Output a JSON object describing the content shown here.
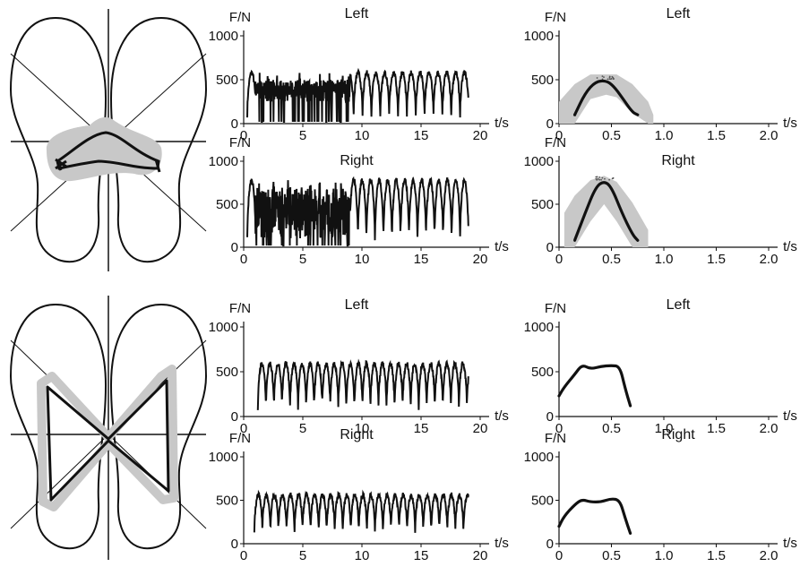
{
  "figure": {
    "panel_titles": [
      "Left",
      "Right"
    ],
    "force_unit": "F/N",
    "time_unit": "t/s",
    "colors": {
      "ink": "#111111",
      "band": "#c8c8c8",
      "dots": "#555555"
    }
  },
  "footprints": [
    {
      "name": "top",
      "trajectory": "small-loop-with-wide-gray-band"
    },
    {
      "name": "bottom",
      "trajectory": "butterfly-with-gray-band"
    }
  ],
  "chart_data": [
    {
      "type": "line",
      "name": "top-left-time-series",
      "title": "Left",
      "xlabel": "t/s",
      "ylabel": "F/N",
      "xlim": [
        0,
        20
      ],
      "ylim": [
        0,
        1000
      ],
      "xticks": [
        0,
        5,
        10,
        15,
        20
      ],
      "yticks": [
        0,
        500,
        1000
      ],
      "cycle_period": 0.75,
      "amplitude_peak": 580,
      "amplitude_min": 100,
      "irregular_segment": [
        1,
        9
      ],
      "irregular_range": [
        250,
        500
      ],
      "t_range": [
        0.3,
        19
      ]
    },
    {
      "type": "line",
      "name": "top-right-time-series",
      "title": "Right",
      "xlabel": "t/s",
      "ylabel": "F/N",
      "xlim": [
        0,
        20
      ],
      "ylim": [
        0,
        1000
      ],
      "xticks": [
        0,
        5,
        10,
        15,
        20
      ],
      "yticks": [
        0,
        500,
        1000
      ],
      "cycle_period": 0.72,
      "amplitude_peak": 780,
      "amplitude_min": 100,
      "irregular_segment": [
        1,
        9
      ],
      "irregular_range": [
        100,
        700
      ],
      "t_range": [
        0.3,
        19
      ]
    },
    {
      "type": "area",
      "name": "top-left-cycle",
      "title": "Left",
      "xlabel": "t/s",
      "ylabel": "F/N",
      "xlim": [
        0,
        2.0
      ],
      "ylim": [
        0,
        1000
      ],
      "xticks": [
        "0",
        "0.5",
        "1.0",
        "1.5",
        "2.0"
      ],
      "yticks": [
        0,
        500,
        1000
      ],
      "mean": {
        "x": [
          0.15,
          0.25,
          0.35,
          0.45,
          0.52,
          0.6,
          0.7,
          0.75
        ],
        "y": [
          100,
          350,
          480,
          490,
          430,
          300,
          130,
          100
        ]
      },
      "band": {
        "x": [
          0.0,
          0.15,
          0.3,
          0.45,
          0.55,
          0.7,
          0.85,
          0.9
        ],
        "upper": [
          250,
          450,
          560,
          560,
          560,
          450,
          250,
          100
        ],
        "lower": [
          0,
          0,
          280,
          330,
          300,
          120,
          0,
          0
        ]
      }
    },
    {
      "type": "area",
      "name": "top-right-cycle",
      "title": "Right",
      "xlabel": "t/s",
      "ylabel": "F/N",
      "xlim": [
        0,
        2.0
      ],
      "ylim": [
        0,
        1000
      ],
      "xticks": [
        "0",
        "0.5",
        "1.0",
        "1.5",
        "2.0"
      ],
      "yticks": [
        0,
        500,
        1000
      ],
      "mean": {
        "x": [
          0.15,
          0.25,
          0.35,
          0.43,
          0.5,
          0.6,
          0.7,
          0.75
        ],
        "y": [
          80,
          400,
          700,
          770,
          700,
          400,
          150,
          80
        ]
      },
      "band": {
        "x": [
          0.05,
          0.15,
          0.3,
          0.43,
          0.55,
          0.7,
          0.85
        ],
        "upper": [
          400,
          600,
          780,
          830,
          760,
          520,
          200
        ],
        "lower": [
          0,
          0,
          300,
          500,
          300,
          0,
          0
        ]
      }
    },
    {
      "type": "line",
      "name": "bottom-left-time-series",
      "title": "Left",
      "xlabel": "t/s",
      "ylabel": "F/N",
      "xlim": [
        0,
        20
      ],
      "ylim": [
        0,
        1000
      ],
      "xticks": [
        0,
        5,
        10,
        15,
        20
      ],
      "yticks": [
        0,
        500,
        1000
      ],
      "cycle_period": 0.68,
      "amplitude_peak": 590,
      "amplitude_min": 100,
      "t_range": [
        1.2,
        19
      ]
    },
    {
      "type": "line",
      "name": "bottom-right-time-series",
      "title": "Right",
      "xlabel": "t/s",
      "ylabel": "F/N",
      "xlim": [
        0,
        20
      ],
      "ylim": [
        0,
        1000
      ],
      "xticks": [
        0,
        5,
        10,
        15,
        20
      ],
      "yticks": [
        0,
        500,
        1000
      ],
      "cycle_period": 0.68,
      "amplitude_peak": 560,
      "amplitude_min": 150,
      "t_range": [
        0.9,
        19
      ]
    },
    {
      "type": "line",
      "name": "bottom-left-cycle",
      "title": "Left",
      "xlabel": "t/s",
      "ylabel": "F/N",
      "xlim": [
        0,
        2.0
      ],
      "ylim": [
        0,
        1000
      ],
      "xticks": [
        "0",
        "0.5",
        "1.0",
        "1.5",
        "2.0"
      ],
      "yticks": [
        0,
        500,
        1000
      ],
      "mean": {
        "x": [
          0.0,
          0.05,
          0.15,
          0.22,
          0.3,
          0.4,
          0.5,
          0.58,
          0.63,
          0.68
        ],
        "y": [
          230,
          330,
          470,
          580,
          530,
          560,
          570,
          560,
          320,
          120
        ]
      }
    },
    {
      "type": "line",
      "name": "bottom-right-cycle",
      "title": "Right",
      "xlabel": "t/s",
      "ylabel": "F/N",
      "xlim": [
        0,
        2.0
      ],
      "ylim": [
        0,
        1000
      ],
      "xticks": [
        "0",
        "0.5",
        "1.0",
        "1.5",
        "2.0"
      ],
      "yticks": [
        0,
        500,
        1000
      ],
      "mean": {
        "x": [
          0.0,
          0.05,
          0.15,
          0.22,
          0.3,
          0.4,
          0.5,
          0.58,
          0.63,
          0.68
        ],
        "y": [
          200,
          320,
          450,
          510,
          480,
          480,
          520,
          500,
          300,
          120
        ]
      }
    }
  ]
}
